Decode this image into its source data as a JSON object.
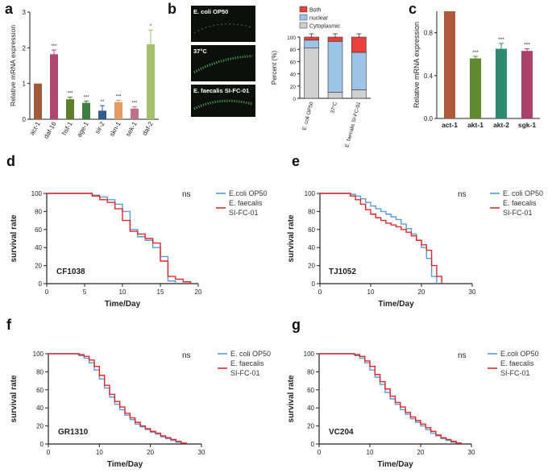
{
  "chart_data": [
    {
      "panel": "a",
      "type": "bar",
      "ylabel": "Relative mRNA expression",
      "ylim": [
        0,
        3
      ],
      "yticks": [
        0,
        1,
        2,
        3
      ],
      "categories": [
        "act-1",
        "daf-16",
        "hsf-1",
        "age-1",
        "sir-2",
        "skn-1",
        "sek-1",
        "daf-2"
      ],
      "values": [
        1.0,
        1.82,
        0.56,
        0.46,
        0.24,
        0.48,
        0.3,
        2.1
      ],
      "errors": [
        0,
        0.12,
        0.06,
        0.05,
        0.14,
        0.05,
        0.05,
        0.4
      ],
      "significance": [
        "",
        "***",
        "***",
        "***",
        "**",
        "***",
        "***",
        "*"
      ],
      "colors": [
        "#a4583c",
        "#b04771",
        "#5d7f2b",
        "#3f7d44",
        "#2f5c8c",
        "#e49a63",
        "#c0708a",
        "#a6bf6a"
      ]
    },
    {
      "panel": "b-images",
      "type": "image",
      "labels": [
        "E. coli OP50",
        "37°C",
        "E. faecalis SI-FC-01"
      ]
    },
    {
      "panel": "b",
      "type": "bar",
      "stacked": true,
      "ylabel": "Percent (%)",
      "ylim": [
        0,
        100
      ],
      "yticks": [
        0,
        20,
        40,
        60,
        80,
        100
      ],
      "categories": [
        "E. coli OP50",
        "37°C",
        "E. faecalis SI-FC-01"
      ],
      "series": [
        {
          "name": "Cytoplasmic",
          "color": "#cfcfcf",
          "values": [
            82,
            10,
            14
          ]
        },
        {
          "name": "nuclear",
          "color": "#9ec3e8",
          "values": [
            13,
            83,
            61
          ]
        },
        {
          "name": "Both",
          "color": "#e8413c",
          "values": [
            5,
            7,
            25
          ]
        }
      ],
      "legend": [
        "Both",
        "nuclear",
        "Cytoplasmic"
      ]
    },
    {
      "panel": "c",
      "type": "bar",
      "ylabel": "Relative mRNA expression",
      "ylim": [
        0,
        1.0
      ],
      "yticks": [
        "0.0",
        "0.4",
        "0.8"
      ],
      "categories": [
        "act-1",
        "akt-1",
        "akt-2",
        "sgk-1"
      ],
      "values": [
        1.0,
        0.56,
        0.65,
        0.63
      ],
      "errors": [
        0,
        0.02,
        0.05,
        0.02
      ],
      "significance": [
        "",
        "***",
        "***",
        "***"
      ],
      "colors": [
        "#b0583a",
        "#5f8a30",
        "#2e8a6d",
        "#a8416b"
      ]
    },
    {
      "panel": "d",
      "type": "line",
      "step": true,
      "strain": "CF1038",
      "stat": "ns",
      "xlabel": "Time/Day",
      "ylabel": "survival rate",
      "xlim": [
        0,
        20
      ],
      "xticks": [
        0,
        5,
        10,
        15,
        20
      ],
      "ylim": [
        0,
        100
      ],
      "yticks": [
        0,
        20,
        40,
        60,
        80,
        100
      ],
      "series": [
        {
          "name": "E.coli OP50",
          "color": "#5b9bd5",
          "x": [
            0,
            6,
            7,
            8,
            9,
            10,
            11,
            12,
            13,
            14,
            15,
            16,
            17
          ],
          "y": [
            100,
            98,
            96,
            93,
            88,
            80,
            60,
            52,
            48,
            40,
            30,
            3,
            0
          ]
        },
        {
          "name": "E. faecalis SI-FC-01",
          "color": "#e0262d",
          "x": [
            0,
            6,
            7,
            8,
            9,
            10,
            11,
            12,
            13,
            14,
            15,
            16,
            17,
            18,
            19
          ],
          "y": [
            100,
            97,
            93,
            90,
            83,
            70,
            58,
            55,
            50,
            45,
            25,
            8,
            5,
            2,
            0
          ]
        }
      ]
    },
    {
      "panel": "e",
      "type": "line",
      "step": true,
      "strain": "TJ1052",
      "stat": "ns",
      "xlabel": "Time/Day",
      "ylabel": "survival rate",
      "xlim": [
        0,
        30
      ],
      "xticks": [
        0,
        10,
        20,
        30
      ],
      "ylim": [
        0,
        100
      ],
      "yticks": [
        0,
        20,
        40,
        60,
        80,
        100
      ],
      "series": [
        {
          "name": "E. coli OP50",
          "color": "#5b9bd5",
          "x": [
            0,
            6,
            7,
            8,
            9,
            10,
            11,
            12,
            13,
            14,
            15,
            16,
            17,
            18,
            19,
            20,
            21,
            22,
            23
          ],
          "y": [
            100,
            99,
            97,
            94,
            90,
            86,
            83,
            80,
            77,
            74,
            71,
            66,
            61,
            55,
            48,
            40,
            28,
            8,
            0
          ]
        },
        {
          "name": "E. faecalis SI-FC-01",
          "color": "#e0262d",
          "x": [
            0,
            6,
            7,
            8,
            9,
            10,
            11,
            12,
            13,
            14,
            15,
            16,
            17,
            18,
            19,
            20,
            21,
            22,
            23,
            24
          ],
          "y": [
            100,
            97,
            93,
            88,
            82,
            77,
            73,
            70,
            67,
            65,
            63,
            60,
            57,
            53,
            48,
            43,
            37,
            20,
            8,
            0
          ]
        }
      ]
    },
    {
      "panel": "f",
      "type": "line",
      "step": true,
      "strain": "GR1310",
      "stat": "ns",
      "xlabel": "Time/Day",
      "ylabel": "survival rate",
      "xlim": [
        0,
        30
      ],
      "xticks": [
        0,
        10,
        20,
        30
      ],
      "ylim": [
        0,
        100
      ],
      "yticks": [
        0,
        20,
        40,
        60,
        80,
        100
      ],
      "series": [
        {
          "name": "E. coli OP50",
          "color": "#5b9bd5",
          "x": [
            0,
            6,
            7,
            8,
            9,
            10,
            11,
            12,
            13,
            14,
            15,
            16,
            17,
            18,
            19,
            20,
            21,
            22,
            23,
            24,
            25,
            26,
            27
          ],
          "y": [
            100,
            98,
            95,
            90,
            82,
            72,
            62,
            52,
            44,
            38,
            32,
            27,
            22,
            19,
            16,
            13,
            11,
            8,
            6,
            4,
            2,
            1,
            0
          ]
        },
        {
          "name": "E. faecalis SI-FC-01",
          "color": "#e0262d",
          "x": [
            0,
            6,
            7,
            8,
            9,
            10,
            11,
            12,
            13,
            14,
            15,
            16,
            17,
            18,
            19,
            20,
            21,
            22,
            23,
            24,
            25,
            26,
            27
          ],
          "y": [
            100,
            99,
            97,
            93,
            86,
            76,
            65,
            55,
            47,
            41,
            34,
            29,
            24,
            20,
            17,
            14,
            12,
            9,
            7,
            5,
            3,
            1,
            0
          ]
        }
      ]
    },
    {
      "panel": "g",
      "type": "line",
      "step": true,
      "strain": "VC204",
      "stat": "ns",
      "xlabel": "Time/Day",
      "ylabel": "survival rate",
      "xlim": [
        0,
        30
      ],
      "xticks": [
        0,
        10,
        20,
        30
      ],
      "ylim": [
        0,
        100
      ],
      "yticks": [
        0,
        20,
        40,
        60,
        80,
        100
      ],
      "series": [
        {
          "name": "E.coli OP50",
          "color": "#5b9bd5",
          "x": [
            0,
            7,
            8,
            9,
            10,
            11,
            12,
            13,
            14,
            15,
            16,
            17,
            18,
            19,
            20,
            21,
            22,
            23,
            24,
            25,
            26,
            27,
            28
          ],
          "y": [
            100,
            98,
            95,
            90,
            82,
            74,
            66,
            57,
            50,
            44,
            38,
            33,
            28,
            24,
            20,
            16,
            12,
            9,
            6,
            4,
            2,
            1,
            0
          ]
        },
        {
          "name": "E. faecalis SI-FC-01",
          "color": "#e0262d",
          "x": [
            0,
            7,
            8,
            9,
            10,
            11,
            12,
            13,
            14,
            15,
            16,
            17,
            18,
            19,
            20,
            21,
            22,
            23,
            24,
            25,
            26,
            27,
            28
          ],
          "y": [
            100,
            99,
            97,
            92,
            86,
            77,
            69,
            61,
            53,
            46,
            41,
            35,
            30,
            26,
            22,
            18,
            14,
            10,
            7,
            5,
            3,
            1,
            0
          ]
        }
      ]
    }
  ]
}
